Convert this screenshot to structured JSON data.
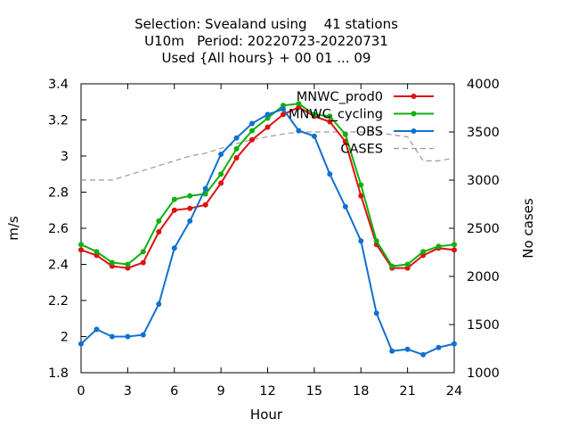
{
  "chart_data": {
    "type": "line",
    "title": "Selection: Svealand using    41 stations\nU10m   Period: 20220723-20220731\nUsed {All hours} + 00 01 ... 09",
    "xlabel": "Hour",
    "ylabel": "m/s",
    "y2label": "No cases",
    "xlim": [
      0,
      24
    ],
    "ylim": [
      1.8,
      3.4
    ],
    "y2lim": [
      1000,
      4000
    ],
    "xticks": [
      "0",
      "3",
      "6",
      "9",
      "12",
      "15",
      "18",
      "21",
      "24"
    ],
    "yticks": [
      "1.8",
      "2",
      "2.2",
      "2.4",
      "2.6",
      "2.8",
      "3",
      "3.2",
      "3.4"
    ],
    "y2ticks": [
      "1000",
      "1500",
      "2000",
      "2500",
      "3000",
      "3500",
      "4000"
    ],
    "grid": false,
    "legend_position": "top-right",
    "x": [
      0,
      1,
      2,
      3,
      4,
      5,
      6,
      7,
      8,
      9,
      10,
      11,
      12,
      13,
      14,
      15,
      16,
      17,
      18,
      19,
      20,
      21,
      22,
      23,
      24
    ],
    "series": [
      {
        "name": "MNWC_prod0",
        "color": "#e01010",
        "axis": "left",
        "values": [
          2.48,
          2.45,
          2.39,
          2.38,
          2.41,
          2.58,
          2.7,
          2.71,
          2.73,
          2.85,
          2.99,
          3.09,
          3.16,
          3.23,
          3.27,
          3.22,
          3.19,
          3.08,
          2.78,
          2.51,
          2.38,
          2.38,
          2.45,
          2.49,
          2.48
        ]
      },
      {
        "name": "MNWC_cycling",
        "color": "#10b010",
        "axis": "left",
        "values": [
          2.51,
          2.47,
          2.41,
          2.4,
          2.47,
          2.64,
          2.76,
          2.78,
          2.79,
          2.9,
          3.04,
          3.14,
          3.21,
          3.28,
          3.29,
          3.23,
          3.22,
          3.12,
          2.84,
          2.53,
          2.39,
          2.4,
          2.47,
          2.5,
          2.51
        ]
      },
      {
        "name": "OBS",
        "color": "#1070d0",
        "axis": "left",
        "values": [
          1.96,
          2.04,
          2.0,
          2.0,
          2.01,
          2.18,
          2.49,
          2.64,
          2.82,
          3.01,
          3.1,
          3.18,
          3.23,
          3.26,
          3.14,
          3.11,
          2.9,
          2.72,
          2.53,
          2.13,
          1.92,
          1.93,
          1.9,
          1.94,
          1.96
        ]
      },
      {
        "name": "CASES",
        "color": "#999999",
        "axis": "right",
        "dashed": true,
        "values": [
          3000,
          3000,
          3000,
          3050,
          3100,
          3150,
          3200,
          3250,
          3280,
          3330,
          3380,
          3420,
          3450,
          3480,
          3500,
          3500,
          3500,
          3500,
          3500,
          3500,
          3470,
          3450,
          3200,
          3200,
          3230
        ]
      }
    ]
  }
}
